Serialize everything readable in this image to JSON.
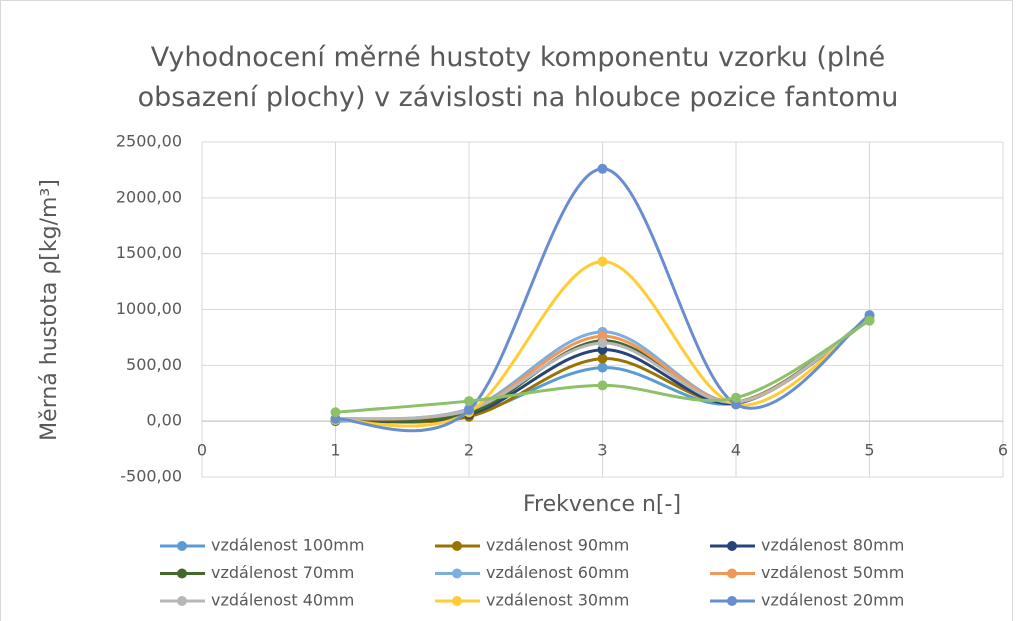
{
  "chart_data": {
    "type": "scatter-smooth",
    "title": "Vyhodnocení měrné hustoty komponentu vzorku (plné obsazení plochy) v závislosti na hloubce pozice fantomu",
    "xlabel": "Frekvence n[-]",
    "ylabel": "Měrná hustota ρ[kg/m³]",
    "x": [
      1,
      2,
      3,
      4,
      5
    ],
    "xlim": [
      0,
      6
    ],
    "xticks": [
      0,
      1,
      2,
      3,
      4,
      5,
      6
    ],
    "ylim": [
      -500,
      2500
    ],
    "yticks": [
      {
        "value": -500,
        "label": "-500,00"
      },
      {
        "value": 0,
        "label": "0,00"
      },
      {
        "value": 500,
        "label": "500,00"
      },
      {
        "value": 1000,
        "label": "1000,00"
      },
      {
        "value": 1500,
        "label": "1500,00"
      },
      {
        "value": 2000,
        "label": "2000,00"
      },
      {
        "value": 2500,
        "label": "2500,00"
      }
    ],
    "grid": true,
    "legend": "bottom",
    "series": [
      {
        "name": "vzdálenost 100mm",
        "color": "#5B9BD5",
        "values": [
          0,
          60,
          480,
          160,
          920
        ]
      },
      {
        "name": "vzdálenost 90mm",
        "color": "#997300",
        "values": [
          10,
          40,
          560,
          170,
          910
        ]
      },
      {
        "name": "vzdálenost 80mm",
        "color": "#264478",
        "values": [
          5,
          60,
          640,
          160,
          920
        ]
      },
      {
        "name": "vzdálenost 70mm",
        "color": "#43682B",
        "values": [
          10,
          70,
          720,
          170,
          910
        ]
      },
      {
        "name": "vzdálenost 60mm",
        "color": "#7CAFDD",
        "values": [
          20,
          110,
          800,
          170,
          930
        ]
      },
      {
        "name": "vzdálenost 50mm",
        "color": "#F1975A",
        "values": [
          20,
          100,
          760,
          170,
          920
        ]
      },
      {
        "name": "vzdálenost 40mm",
        "color": "#B7B7B7",
        "values": [
          20,
          100,
          700,
          170,
          920
        ]
      },
      {
        "name": "vzdálenost 30mm",
        "color": "#FFCD33",
        "values": [
          10,
          80,
          1430,
          150,
          930
        ]
      },
      {
        "name": "vzdálenost 20mm",
        "color": "#698ED0",
        "values": [
          20,
          100,
          2260,
          150,
          950
        ]
      },
      {
        "color": "#8CC168",
        "values": [
          80,
          180,
          320,
          210,
          900
        ]
      }
    ]
  }
}
